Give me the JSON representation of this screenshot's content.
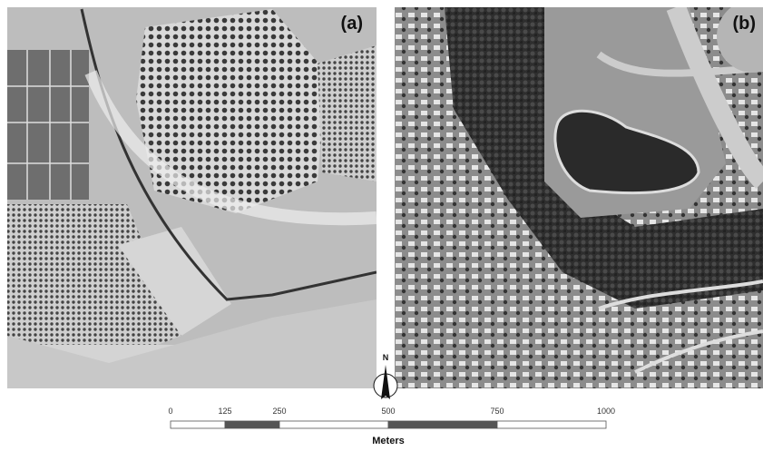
{
  "panels": [
    {
      "label": "(a)"
    },
    {
      "label": "(b)"
    }
  ],
  "north_arrow": "N",
  "scale_bar": {
    "ticks": [
      0,
      125,
      250,
      500,
      750,
      1000
    ],
    "unit": "Meters"
  }
}
